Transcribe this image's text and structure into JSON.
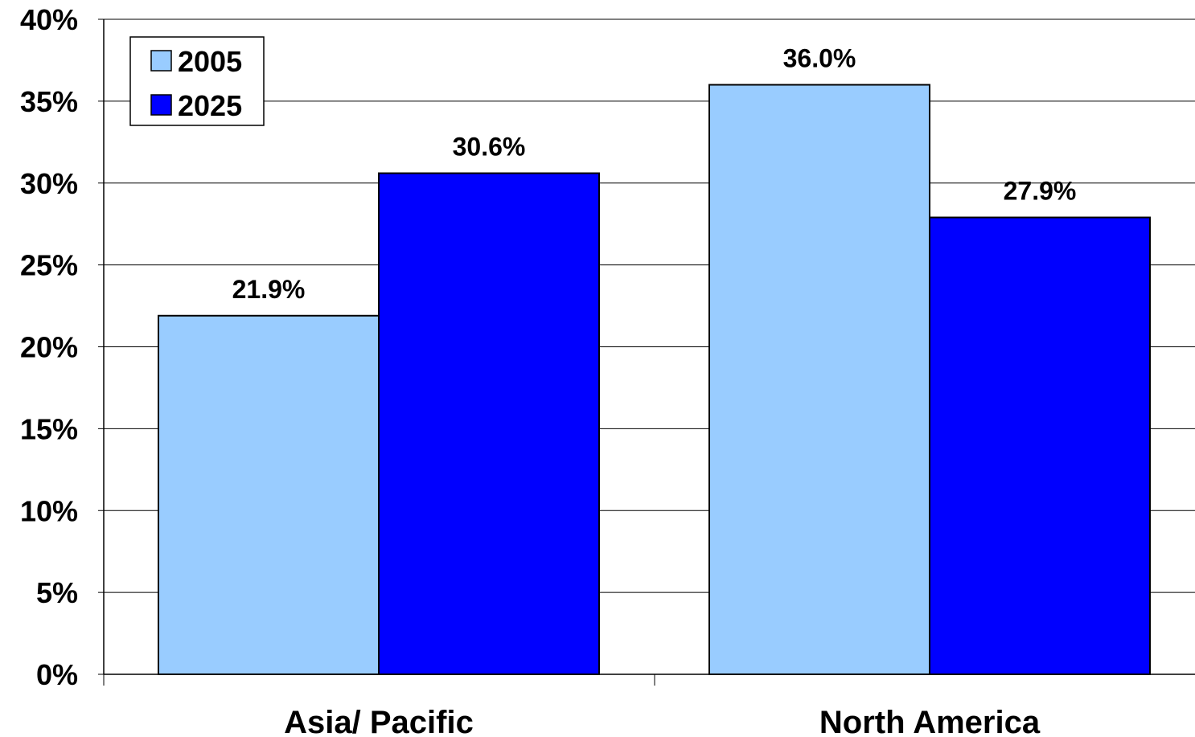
{
  "chart_data": {
    "type": "bar",
    "categories": [
      "Asia/ Pacific",
      "North America"
    ],
    "series": [
      {
        "name": "2005",
        "values": [
          21.9,
          36.0
        ],
        "labels": [
          "21.9%",
          "36.0%"
        ],
        "color": "#99ccff"
      },
      {
        "name": "2025",
        "values": [
          30.6,
          27.9
        ],
        "labels": [
          "30.6%",
          "27.9%"
        ],
        "color": "#0000ff"
      }
    ],
    "title": "",
    "xlabel": "",
    "ylabel": "",
    "ylim": [
      0,
      40
    ],
    "yticks": [
      0,
      5,
      10,
      15,
      20,
      25,
      30,
      35,
      40
    ],
    "ytick_labels": [
      "0%",
      "5%",
      "10%",
      "15%",
      "20%",
      "25%",
      "30%",
      "35%",
      "40%"
    ],
    "grid": true,
    "legend_position": "top-left"
  }
}
